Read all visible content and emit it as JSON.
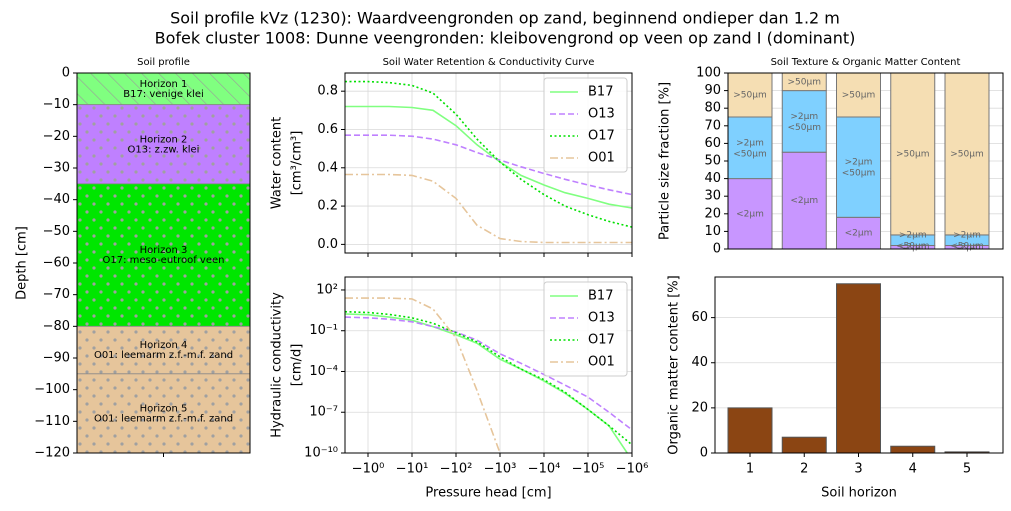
{
  "suptitle": [
    "Soil profile kVz (1230): Waardveengronden op zand, beginnend ondieper dan 1.2 m",
    "Bofek cluster 1008: Dunne veengronden: kleibovengrond op veen op zand I (dominant)"
  ],
  "chart_data": [
    {
      "type": "profile",
      "title": "Soil profile",
      "ylabel": "Depth [cm]",
      "ylim": [
        -120,
        0
      ],
      "yticks": [
        0,
        {
          "value": -10,
          "label": "−10"
        },
        {
          "value": -20,
          "label": "−20"
        },
        {
          "value": -30,
          "label": "−30"
        },
        {
          "value": -40,
          "label": "−40"
        },
        {
          "value": -50,
          "label": "−50"
        },
        {
          "value": -60,
          "label": "−60"
        },
        {
          "value": -70,
          "label": "−70"
        },
        {
          "value": -80,
          "label": "−80"
        },
        {
          "value": -90,
          "label": "−90"
        },
        {
          "value": -100,
          "label": "−100"
        },
        {
          "value": -110,
          "label": "−110"
        },
        {
          "value": -120,
          "label": "−120"
        }
      ],
      "layers": [
        {
          "name": "Horizon 1",
          "label": "B17: venige klei",
          "top": 0,
          "bottom": -10,
          "color": "#80ff80",
          "pattern": "hatch"
        },
        {
          "name": "Horizon 2",
          "label": "O13: z.zw. klei",
          "top": -10,
          "bottom": -35,
          "color": "#bf80ff",
          "pattern": "dots"
        },
        {
          "name": "Horizon 3",
          "label": "O17: meso-eutroof veen",
          "top": -35,
          "bottom": -80,
          "color": "#00e600",
          "pattern": "dots"
        },
        {
          "name": "Horizon 4",
          "label": "O01: leemarm z.f.-m.f. zand",
          "top": -80,
          "bottom": -95,
          "color": "#e6c59b",
          "pattern": "dots"
        },
        {
          "name": "Horizon 5",
          "label": "O01: leemarm z.f.-m.f. zand",
          "top": -95,
          "bottom": -120,
          "color": "#e6c59b",
          "pattern": "dots"
        }
      ]
    },
    {
      "type": "line",
      "title": "Soil Water Retention & Conductivity Curve",
      "ylabel": [
        "Water content",
        "[cm³/cm³]"
      ],
      "xscale": "log",
      "x": [
        -0.3,
        -1,
        -3,
        -10,
        -30,
        -100,
        -300,
        -1000,
        -3000,
        -10000,
        -30000,
        -100000,
        -300000,
        -1000000
      ],
      "xlim": [
        -0.3,
        -1000000
      ],
      "xticks": [
        -1,
        -10,
        -100,
        -1000,
        -10000,
        -100000,
        -1000000
      ],
      "ylim": [
        -0.045,
        0.895
      ],
      "yticks": [
        {
          "value": 0,
          "label": "0.0"
        },
        0.2,
        0.4,
        0.6,
        0.8
      ],
      "grid": true,
      "legend": "upper right",
      "series": [
        {
          "name": "B17",
          "color": "#80ff80",
          "dash": "solid",
          "values": [
            0.72,
            0.72,
            0.72,
            0.715,
            0.7,
            0.62,
            0.52,
            0.43,
            0.36,
            0.31,
            0.27,
            0.24,
            0.21,
            0.19
          ]
        },
        {
          "name": "O13",
          "color": "#bf80ff",
          "dash": "dashed",
          "values": [
            0.57,
            0.57,
            0.57,
            0.565,
            0.55,
            0.52,
            0.48,
            0.44,
            0.405,
            0.37,
            0.34,
            0.31,
            0.285,
            0.26
          ]
        },
        {
          "name": "O17",
          "color": "#00e000",
          "dash": "dotted",
          "values": [
            0.85,
            0.85,
            0.845,
            0.83,
            0.79,
            0.68,
            0.55,
            0.43,
            0.34,
            0.26,
            0.2,
            0.155,
            0.12,
            0.09
          ]
        },
        {
          "name": "O01",
          "color": "#e6c59b",
          "dash": "dashdot",
          "values": [
            0.365,
            0.365,
            0.365,
            0.36,
            0.33,
            0.24,
            0.1,
            0.03,
            0.015,
            0.01,
            0.01,
            0.01,
            0.01,
            0.01
          ]
        }
      ]
    },
    {
      "type": "line",
      "xlabel": "Pressure head [cm]",
      "ylabel": [
        "Hydraulic conductivity",
        "[cm/d]"
      ],
      "xscale": "log",
      "yscale": "log",
      "x": [
        -0.3,
        -1,
        -3,
        -10,
        -30,
        -100,
        -300,
        -1000,
        -3000,
        -10000,
        -30000,
        -100000,
        -300000,
        -1000000
      ],
      "xlim": [
        -0.3,
        -1000000
      ],
      "xticks": [
        {
          "value": -1,
          "label": "−10⁰"
        },
        {
          "value": -10,
          "label": "−10¹"
        },
        {
          "value": -100,
          "label": "−10²"
        },
        {
          "value": -1000,
          "label": "−10³"
        },
        {
          "value": -10000,
          "label": "−10⁴"
        },
        {
          "value": -100000,
          "label": "−10⁵"
        },
        {
          "value": -1000000,
          "label": "−10⁶"
        }
      ],
      "ylim": [
        1e-10,
        900
      ],
      "yticks": [
        {
          "value": 1e-10,
          "label": "10⁻¹⁰"
        },
        {
          "value": 1e-07,
          "label": "10⁻⁷"
        },
        {
          "value": 0.0001,
          "label": "10⁻⁴"
        },
        {
          "value": 0.1,
          "label": "10⁻¹"
        },
        {
          "value": 100,
          "label": "10²"
        }
      ],
      "grid": true,
      "legend": "upper right",
      "series": [
        {
          "name": "B17",
          "color": "#80ff80",
          "dash": "solid",
          "values": [
            1.7,
            1.5,
            1.0,
            0.6,
            0.2,
            0.05,
            0.012,
            0.0008,
            0.00015,
            2e-05,
            2.5e-06,
            1.6e-07,
            1e-08,
            3e-11
          ]
        },
        {
          "name": "O13",
          "color": "#bf80ff",
          "dash": "dashed",
          "values": [
            1.0,
            0.9,
            0.7,
            0.45,
            0.2,
            0.08,
            0.02,
            0.002,
            0.0004,
            6e-05,
            1e-05,
            1.3e-06,
            1e-07,
            5e-09
          ]
        },
        {
          "name": "O17",
          "color": "#00e000",
          "dash": "dotted",
          "values": [
            2.5,
            2.2,
            1.6,
            0.9,
            0.35,
            0.07,
            0.015,
            0.0012,
            0.00015,
            2.5e-05,
            3e-06,
            1.6e-07,
            1e-08,
            4e-10
          ]
        },
        {
          "name": "O01",
          "color": "#e6c59b",
          "dash": "dashdot",
          "values": [
            25,
            25,
            25,
            22,
            4,
            0.03,
            4e-06,
            1e-10,
            null,
            null,
            null,
            null,
            null,
            null
          ]
        }
      ]
    },
    {
      "type": "bar",
      "stacked": true,
      "title": "Soil Texture & Organic Matter Content",
      "ylabel": "Particle size fraction [%]",
      "ylim": [
        0,
        100
      ],
      "yticks": [
        0,
        10,
        20,
        30,
        40,
        50,
        60,
        70,
        80,
        90,
        100
      ],
      "grid": true,
      "edgecolor": "#777777",
      "series": [
        {
          "name": "<2µm",
          "color": "#c896ff",
          "values": [
            40,
            55,
            18,
            2,
            2
          ]
        },
        {
          "name": ">2µm\n<50µm",
          "color": "#7fd0ff",
          "values": [
            35,
            35,
            57,
            6,
            6
          ]
        },
        {
          "name": ">50µm",
          "color": "#f5deb3",
          "values": [
            25,
            10,
            25,
            92,
            92
          ]
        }
      ]
    },
    {
      "type": "bar",
      "xlabel": "Soil horizon",
      "ylabel": "Organic matter content [%]",
      "categories": [
        "1",
        "2",
        "3",
        "4",
        "5"
      ],
      "values": [
        20,
        7,
        75,
        3,
        0.5
      ],
      "color": "#8b4513",
      "edgecolor": "#555555",
      "ylim": [
        0,
        78
      ],
      "yticks": [
        0,
        20,
        40,
        60
      ],
      "grid": true
    }
  ]
}
